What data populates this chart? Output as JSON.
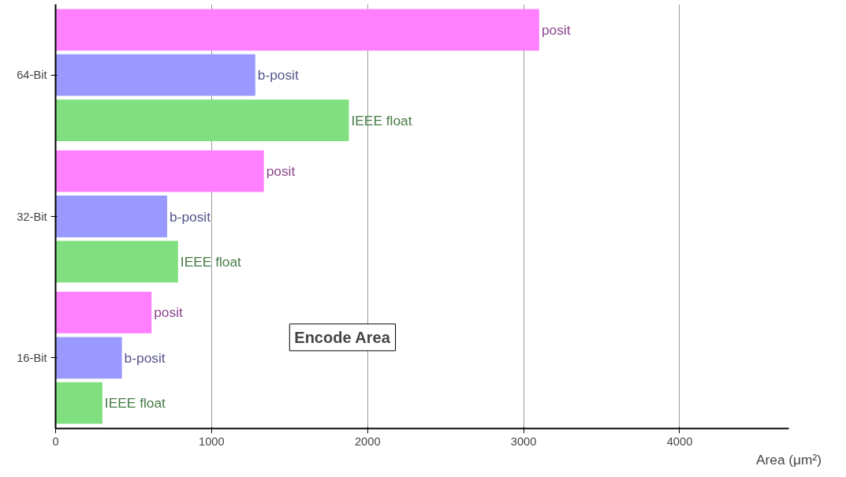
{
  "chart_data": {
    "type": "bar",
    "orientation": "horizontal",
    "title": "Encode Area",
    "xlabel": "Area (μm²)",
    "categories": [
      "64-Bit",
      "32-Bit",
      "16-Bit"
    ],
    "series": [
      {
        "name": "posit",
        "color": "#ff80ff",
        "values": [
          3100,
          1335,
          615
        ]
      },
      {
        "name": "b-posit",
        "color": "#9999ff",
        "values": [
          1280,
          715,
          425
        ]
      },
      {
        "name": "IEEE float",
        "color": "#80e080",
        "values": [
          1880,
          785,
          300
        ]
      }
    ],
    "xlim": [
      0,
      4700
    ],
    "xticks": [
      0,
      1000,
      2000,
      3000,
      4000
    ],
    "grid": "x",
    "legend": false
  }
}
